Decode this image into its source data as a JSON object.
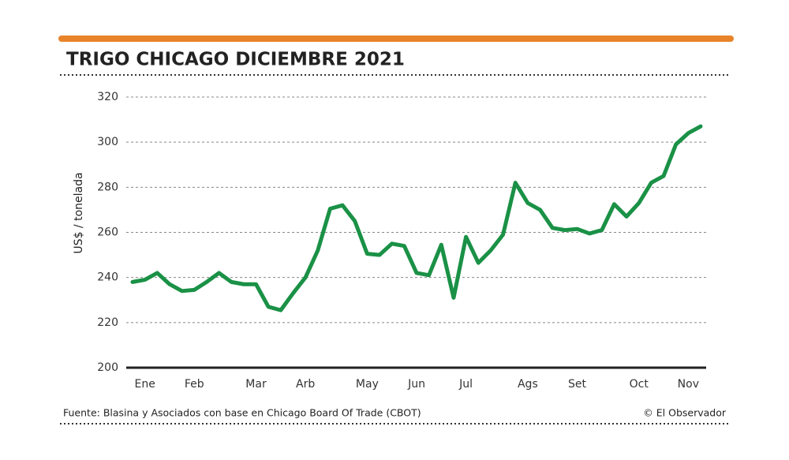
{
  "chart_data": {
    "type": "line",
    "title": "TRIGO CHICAGO DICIEMBRE 2021",
    "y_label": "US$ / tonelada",
    "source": "Fuente: Blasina y Asociados con base en Chicago Board Of Trade (CBOT)",
    "credit": "© El Observador",
    "categories": [
      null,
      "Ene",
      null,
      null,
      null,
      "Feb",
      null,
      null,
      null,
      null,
      "Mar",
      null,
      null,
      null,
      "Arb",
      null,
      null,
      null,
      null,
      "May",
      null,
      null,
      null,
      "Jun",
      null,
      null,
      null,
      "Jul",
      null,
      null,
      null,
      null,
      "Ags",
      null,
      null,
      null,
      "Set",
      null,
      null,
      null,
      null,
      "Oct",
      null,
      null,
      null,
      "Nov",
      null
    ],
    "series": [
      {
        "name": "Trigo",
        "color": "#1a9146",
        "values": [
          238,
          239,
          242,
          237,
          234,
          234.5,
          238,
          242,
          238,
          237,
          237,
          227,
          225.5,
          233,
          240,
          252,
          270.5,
          272,
          265,
          250.5,
          250,
          255,
          254,
          242,
          241,
          254.5,
          231,
          258,
          246.5,
          252,
          259,
          282,
          273,
          270,
          262,
          261,
          261.5,
          259.5,
          261,
          272.5,
          267,
          273,
          282,
          285,
          299,
          304,
          307
        ]
      }
    ],
    "ylim": [
      200,
      320
    ],
    "yticks": [
      200,
      220,
      240,
      260,
      280,
      300,
      320
    ],
    "grid": true
  }
}
